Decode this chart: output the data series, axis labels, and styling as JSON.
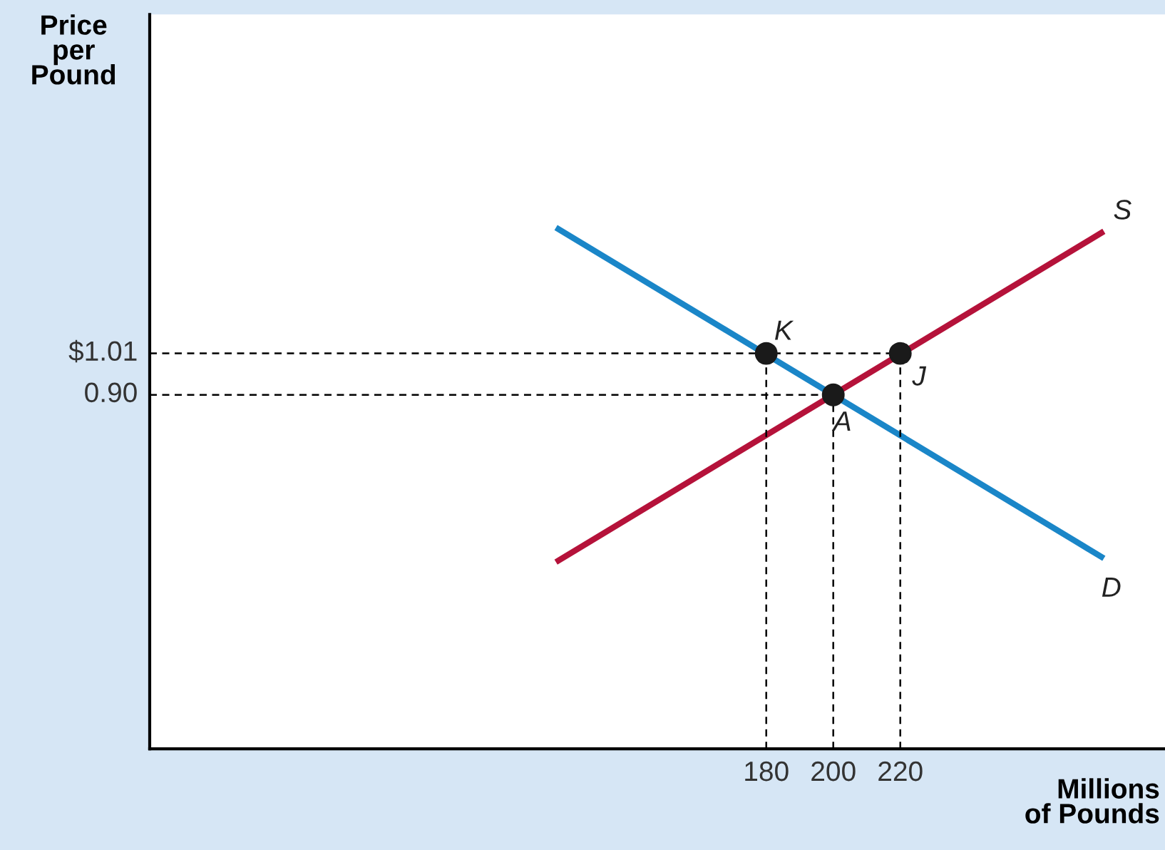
{
  "chart_data": {
    "type": "line",
    "xlabel": "Millions\nof Pounds",
    "ylabel": "Price\nper\nPound",
    "xlim": [
      -4,
      299
    ],
    "ylim": [
      -0.04,
      1.91
    ],
    "xticks": [
      180,
      200,
      220
    ],
    "yticks": [
      {
        "value": 0.9,
        "label": "0.90"
      },
      {
        "value": 1.01,
        "label": "$1.01"
      }
    ],
    "grid": false,
    "legend": false,
    "series": [
      {
        "type": "line",
        "color": "#1a86c8",
        "x": [
          118,
          280
        ],
        "values": [
          1.34,
          0.47
        ],
        "marker": "none",
        "line_style": "solid"
      },
      {
        "type": "line",
        "color": "#b5123a",
        "x": [
          118,
          280
        ],
        "values": [
          0.46,
          1.33
        ],
        "marker": "none",
        "line_style": "solid"
      },
      {
        "type": "line",
        "color": "#000000",
        "x": [
          -4,
          220
        ],
        "values": [
          1.01,
          1.01
        ],
        "marker": "none",
        "line_style": "dashed"
      },
      {
        "type": "line",
        "color": "#000000",
        "x": [
          -4,
          200
        ],
        "values": [
          0.9,
          0.9
        ],
        "marker": "none",
        "line_style": "dashed"
      },
      {
        "type": "line",
        "color": "#000000",
        "x": [
          180,
          180
        ],
        "values": [
          -0.04,
          1.01
        ],
        "marker": "none",
        "line_style": "dashed"
      },
      {
        "type": "line",
        "color": "#000000",
        "x": [
          200,
          200
        ],
        "values": [
          -0.04,
          0.9
        ],
        "marker": "none",
        "line_style": "dashed"
      },
      {
        "type": "line",
        "color": "#000000",
        "x": [
          220,
          220
        ],
        "values": [
          -0.04,
          1.01
        ],
        "marker": "none",
        "line_style": "dashed"
      },
      {
        "type": "scatter",
        "color": "#1a1a1a",
        "x": [
          180,
          200,
          220
        ],
        "values": [
          1.01,
          0.9,
          1.01
        ],
        "marker": "circle"
      }
    ],
    "annotations": [
      {
        "text": "S",
        "x": 280,
        "y": 1.33
      },
      {
        "text": "D",
        "x": 280,
        "y": 0.47
      },
      {
        "text": "K",
        "x": 180,
        "y": 1.01
      },
      {
        "text": "J",
        "x": 220,
        "y": 1.01
      },
      {
        "text": "A",
        "x": 200,
        "y": 0.9
      }
    ]
  }
}
